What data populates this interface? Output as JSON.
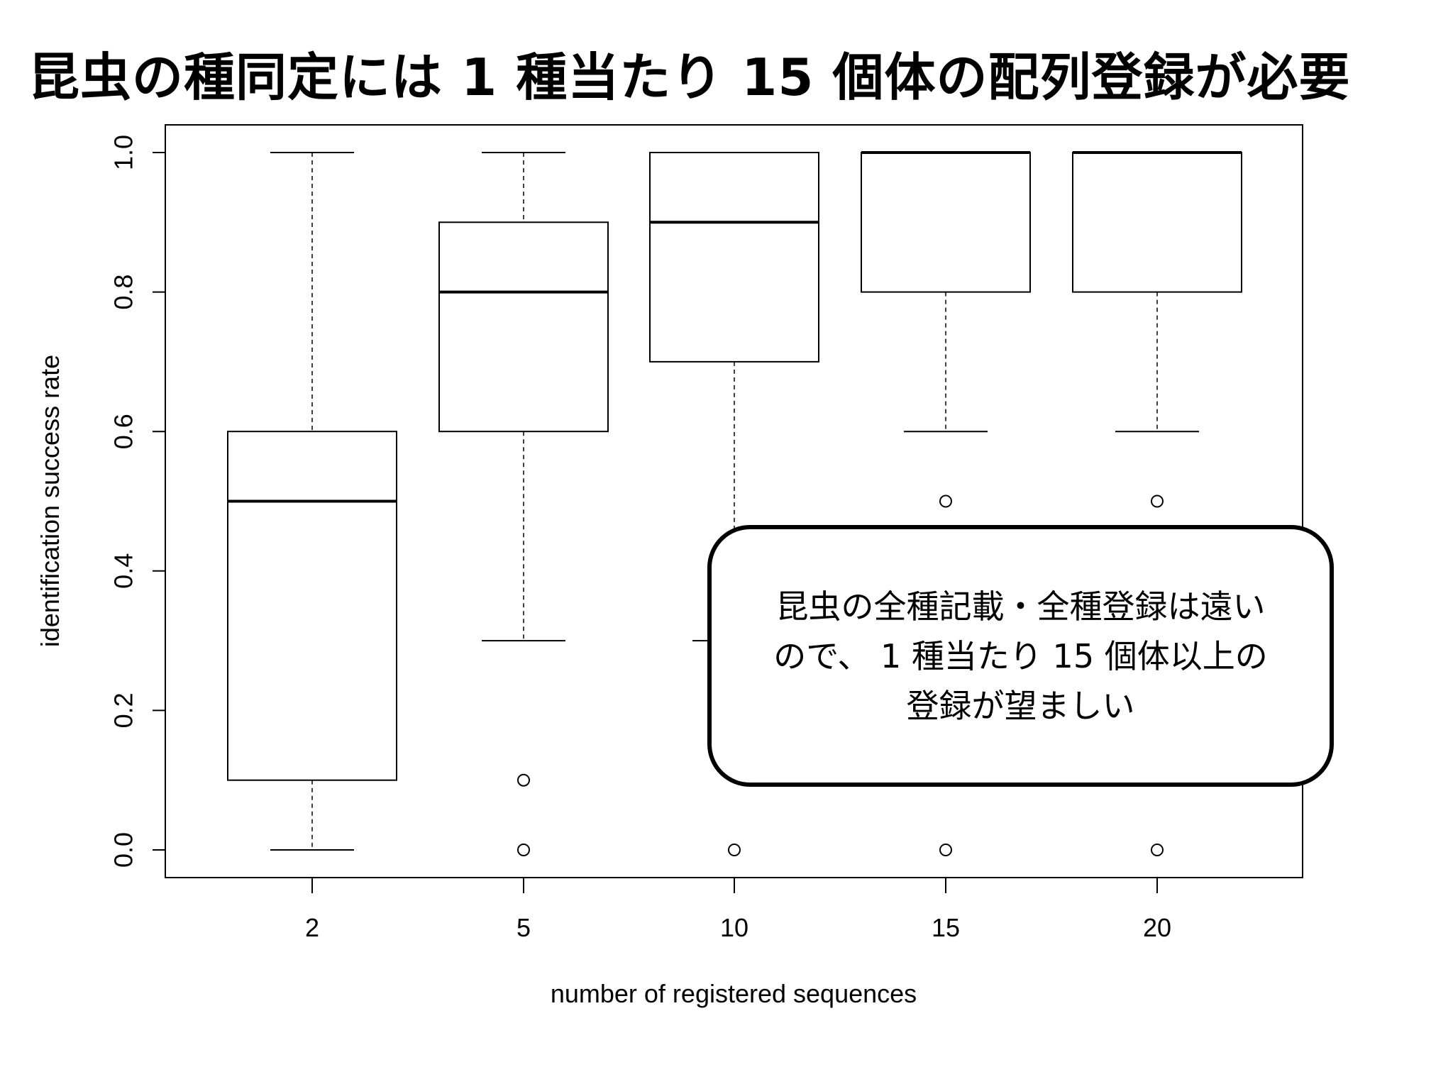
{
  "title": "昆虫の種同定には 1 種当たり 15 個体の配列登録が必要",
  "callout": {
    "text": "昆虫の全種記載・全種登録は遠い\nので、 1 種当たり 15 個体以上の\n登録が望ましい"
  },
  "chart_data": {
    "type": "boxplot",
    "xlabel": "number of registered sequences",
    "ylabel": "identification success rate",
    "categories": [
      "2",
      "5",
      "10",
      "15",
      "20"
    ],
    "ylim": [
      0.0,
      1.0
    ],
    "yticks": [
      "0.0",
      "0.2",
      "0.4",
      "0.6",
      "0.8",
      "1.0"
    ],
    "boxes": [
      {
        "category": "2",
        "whisker_low": 0.0,
        "q1": 0.1,
        "median": 0.5,
        "q3": 0.6,
        "whisker_high": 1.0,
        "outliers": []
      },
      {
        "category": "5",
        "whisker_low": 0.3,
        "q1": 0.6,
        "median": 0.8,
        "q3": 0.9,
        "whisker_high": 1.0,
        "outliers": [
          0.1,
          0.0
        ]
      },
      {
        "category": "10",
        "whisker_low": 0.3,
        "q1": 0.7,
        "median": 0.9,
        "q3": 1.0,
        "whisker_high": 1.0,
        "outliers": [
          0.0
        ]
      },
      {
        "category": "15",
        "whisker_low": 0.6,
        "q1": 0.8,
        "median": 1.0,
        "q3": 1.0,
        "whisker_high": 1.0,
        "outliers": [
          0.5,
          0.0
        ]
      },
      {
        "category": "20",
        "whisker_low": 0.6,
        "q1": 0.8,
        "median": 1.0,
        "q3": 1.0,
        "whisker_high": 1.0,
        "outliers": [
          0.5,
          0.0
        ]
      }
    ],
    "grid": false,
    "colors": {
      "box_fill": "#ffffff",
      "stroke": "#000000"
    }
  }
}
